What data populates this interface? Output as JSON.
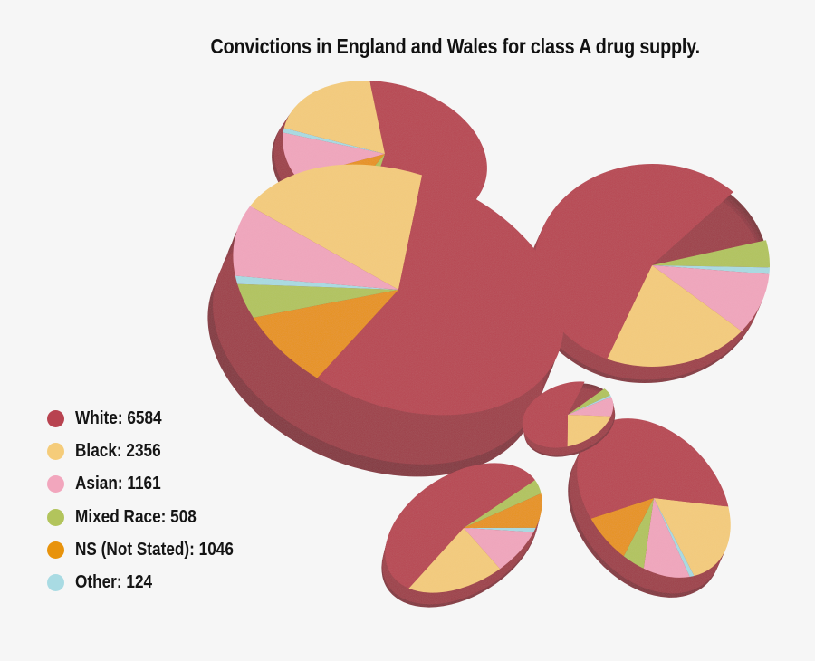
{
  "chart_data": {
    "type": "pie",
    "title": "Convictions in England and Wales for class A drug supply.",
    "categories": [
      "White",
      "Black",
      "Asian",
      "Mixed Race",
      "NS (Not Stated)",
      "Other"
    ],
    "values": [
      6584,
      2356,
      1161,
      508,
      1046,
      124
    ],
    "legend": [
      {
        "label": "White: 6584",
        "color": "#b84350"
      },
      {
        "label": "Black: 2356",
        "color": "#f5cc7a"
      },
      {
        "label": "Asian: 1161",
        "color": "#f2a6bd"
      },
      {
        "label": "Mixed Race: 508",
        "color": "#b2c45c"
      },
      {
        "label": "NS (Not Stated): 1046",
        "color": "#e8930c"
      },
      {
        "label": "Other: 124",
        "color": "#a9dbe3"
      }
    ],
    "legend_position": "bottom-left",
    "style": "3d-tilted-pies"
  }
}
